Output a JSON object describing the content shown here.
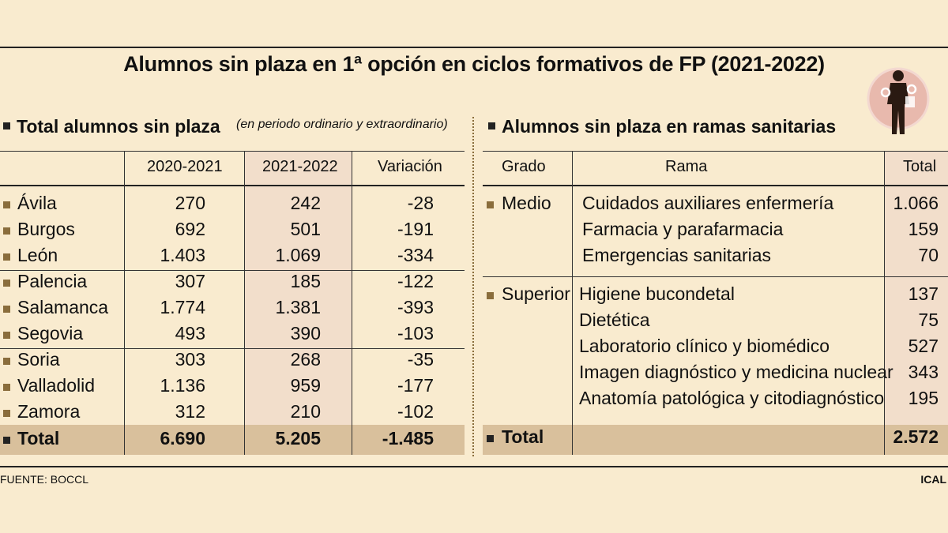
{
  "title": "Alumnos sin plaza en 1ª opción en ciclos formativos de FP (2021-2022)",
  "left": {
    "section_title": "Total alumnos sin plaza",
    "note": "(en periodo ordinario y extraordinario)",
    "headers": [
      "2020-2021",
      "2021-2022",
      "Variación"
    ],
    "rows": [
      {
        "name": "Ávila",
        "v1": "270",
        "v2": "242",
        "var": "-28"
      },
      {
        "name": "Burgos",
        "v1": "692",
        "v2": "501",
        "var": "-191"
      },
      {
        "name": "León",
        "v1": "1.403",
        "v2": "1.069",
        "var": "-334"
      },
      {
        "name": "Palencia",
        "v1": "307",
        "v2": "185",
        "var": "-122"
      },
      {
        "name": "Salamanca",
        "v1": "1.774",
        "v2": "1.381",
        "var": "-393"
      },
      {
        "name": "Segovia",
        "v1": "493",
        "v2": "390",
        "var": "-103"
      },
      {
        "name": "Soria",
        "v1": "303",
        "v2": "268",
        "var": "-35"
      },
      {
        "name": "Valladolid",
        "v1": "1.136",
        "v2": "959",
        "var": "-177"
      },
      {
        "name": "Zamora",
        "v1": "312",
        "v2": "210",
        "var": "-102"
      }
    ],
    "total": {
      "name": "Total",
      "v1": "6.690",
      "v2": "5.205",
      "var": "-1.485"
    }
  },
  "right": {
    "section_title": "Alumnos sin plaza en ramas sanitarias",
    "headers": {
      "grado": "Grado",
      "rama": "Rama",
      "total": "Total"
    },
    "groups": [
      {
        "grado": "Medio",
        "items": [
          {
            "rama": "Cuidados auxiliares enfermería",
            "total": "1.066"
          },
          {
            "rama": "Farmacia y parafarmacia",
            "total": "159"
          },
          {
            "rama": "Emergencias sanitarias",
            "total": "70"
          }
        ]
      },
      {
        "grado": "Superior",
        "items": [
          {
            "rama": "Higiene bucondetal",
            "total": "137"
          },
          {
            "rama": "Dietética",
            "total": "75"
          },
          {
            "rama": "Laboratorio clínico y biomédico",
            "total": "527"
          },
          {
            "rama": "Imagen diagnóstico y medicina nuclear",
            "total": "343"
          },
          {
            "rama": "Anatomía patológica y citodiagnóstico",
            "total": "195"
          }
        ]
      }
    ],
    "total": {
      "label": "Total",
      "value": "2.572"
    }
  },
  "footer": {
    "source": "FUENTE: BOCCL",
    "credit": "ICAL"
  },
  "colors": {
    "background": "#f9ebcf",
    "shade": "#f2decb",
    "total_band": "#d9c09c",
    "bullet": "#8a6d3c"
  },
  "icon": "worker-with-tools-icon"
}
